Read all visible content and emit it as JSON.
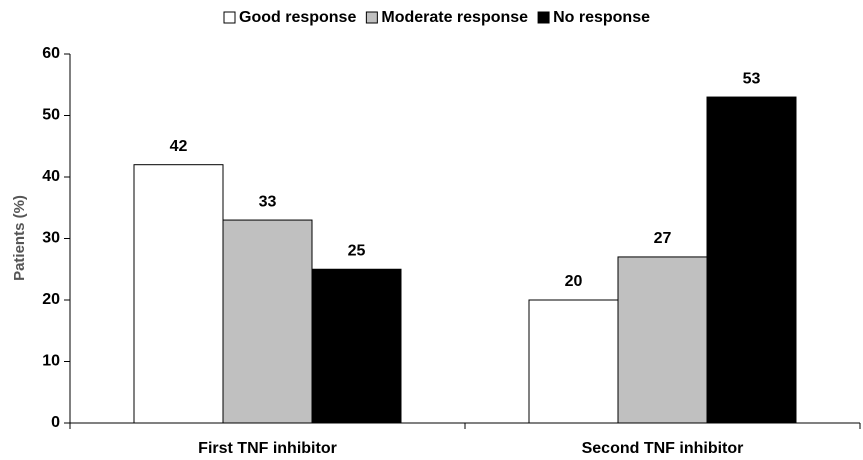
{
  "chart_data": {
    "type": "bar",
    "y_label": "Patients (%)",
    "categories": [
      "First TNF inhibitor",
      "Second TNF inhibitor"
    ],
    "series": [
      {
        "name": "Good response",
        "color": "#ffffff",
        "values": [
          42,
          20
        ]
      },
      {
        "name": "Moderate response",
        "color": "#c0c0c0",
        "values": [
          33,
          27
        ]
      },
      {
        "name": "No response",
        "color": "#000000",
        "values": [
          25,
          53
        ]
      }
    ],
    "ylim": [
      0,
      60
    ],
    "yticks": [
      0,
      10,
      20,
      30,
      40,
      50,
      60
    ],
    "grid": false,
    "legend": "top"
  }
}
